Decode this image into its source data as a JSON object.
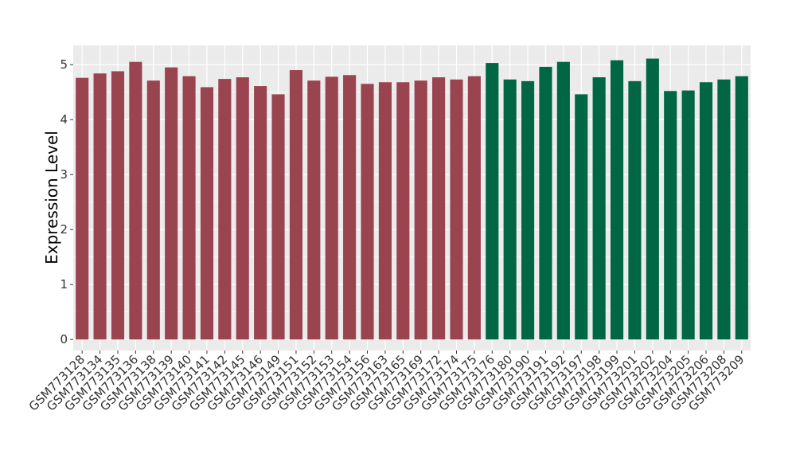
{
  "chart_data": {
    "type": "bar",
    "title": "",
    "xlabel": "",
    "ylabel": "Expression Level",
    "ylim": [
      -0.2,
      5.35
    ],
    "yticks": [
      0,
      1,
      2,
      3,
      4,
      5
    ],
    "grid": true,
    "legend": "none",
    "categories": [
      "GSM773128",
      "GSM773134",
      "GSM773135",
      "GSM773136",
      "GSM773138",
      "GSM773139",
      "GSM773140",
      "GSM773141",
      "GSM773142",
      "GSM773145",
      "GSM773146",
      "GSM773149",
      "GSM773151",
      "GSM773152",
      "GSM773153",
      "GSM773154",
      "GSM773156",
      "GSM773163",
      "GSM773165",
      "GSM773169",
      "GSM773172",
      "GSM773174",
      "GSM773175",
      "GSM773176",
      "GSM773180",
      "GSM773190",
      "GSM773191",
      "GSM773192",
      "GSM773197",
      "GSM773198",
      "GSM773199",
      "GSM773201",
      "GSM773202",
      "GSM773204",
      "GSM773205",
      "GSM773206",
      "GSM773208",
      "GSM773209"
    ],
    "values": [
      4.76,
      4.84,
      4.88,
      5.05,
      4.71,
      4.95,
      4.79,
      4.59,
      4.74,
      4.77,
      4.61,
      4.46,
      4.9,
      4.71,
      4.78,
      4.81,
      4.65,
      4.68,
      4.68,
      4.71,
      4.77,
      4.73,
      4.79,
      5.03,
      4.73,
      4.7,
      4.96,
      5.05,
      4.46,
      4.77,
      5.08,
      4.7,
      5.11,
      4.52,
      4.53,
      4.68,
      4.73,
      4.79
    ],
    "groups": [
      0,
      0,
      0,
      0,
      0,
      0,
      0,
      0,
      0,
      0,
      0,
      0,
      0,
      0,
      0,
      0,
      0,
      0,
      0,
      0,
      0,
      0,
      0,
      1,
      1,
      1,
      1,
      1,
      1,
      1,
      1,
      1,
      1,
      1,
      1,
      1,
      1,
      1
    ],
    "colors": [
      "#9a4450",
      "#006644"
    ],
    "panel_bg": "#ebebeb",
    "grid_color": "#ffffff"
  }
}
